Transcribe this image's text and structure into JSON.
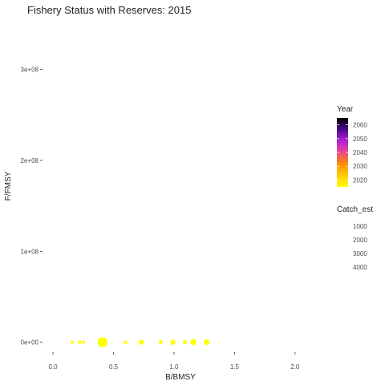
{
  "chart_data": {
    "type": "scatter",
    "title": "Fishery Status with Reserves: 2015",
    "xlabel": "B/BMSY",
    "ylabel": "F/FMSY",
    "xlim": [
      -0.08,
      2.2
    ],
    "ylim": [
      -10000000.0,
      350000000.0
    ],
    "x_ticks": [
      0,
      0.5,
      1.0,
      1.5,
      2.0
    ],
    "x_tick_labels": [
      "0.0",
      "0.5",
      "1.0",
      "1.5",
      "2.0"
    ],
    "y_ticks": [
      0,
      100000000.0,
      200000000.0,
      300000000.0
    ],
    "y_tick_labels": [
      "0e+00",
      "1e+08",
      "2e+08",
      "3e+08"
    ],
    "grid": false,
    "color_legend": {
      "title": "Year",
      "labels": [
        "2060",
        "2050",
        "2040",
        "2030",
        "2020"
      ],
      "range": [
        2015,
        2065
      ],
      "colors": [
        "#ffff00",
        "#ffcc00",
        "#ff8c00",
        "#e64a8a",
        "#b020d8",
        "#4a0a8c",
        "#000000"
      ]
    },
    "size_legend": {
      "title": "Catch_est",
      "labels": [
        "1000",
        "2000",
        "3000",
        "4000"
      ]
    },
    "points_color": "#ffff00",
    "points": [
      {
        "x": 0.16,
        "y": 0,
        "catch": 100
      },
      {
        "x": 0.22,
        "y": 0,
        "catch": 120
      },
      {
        "x": 0.25,
        "y": 0,
        "catch": 150
      },
      {
        "x": 0.41,
        "y": 0,
        "catch": 4200
      },
      {
        "x": 0.6,
        "y": 0,
        "catch": 160
      },
      {
        "x": 0.73,
        "y": 0,
        "catch": 600
      },
      {
        "x": 0.89,
        "y": 0,
        "catch": 300
      },
      {
        "x": 0.99,
        "y": 0,
        "catch": 700
      },
      {
        "x": 1.09,
        "y": 0,
        "catch": 350
      },
      {
        "x": 1.16,
        "y": 0,
        "catch": 1100
      },
      {
        "x": 1.27,
        "y": 0,
        "catch": 900
      }
    ]
  }
}
